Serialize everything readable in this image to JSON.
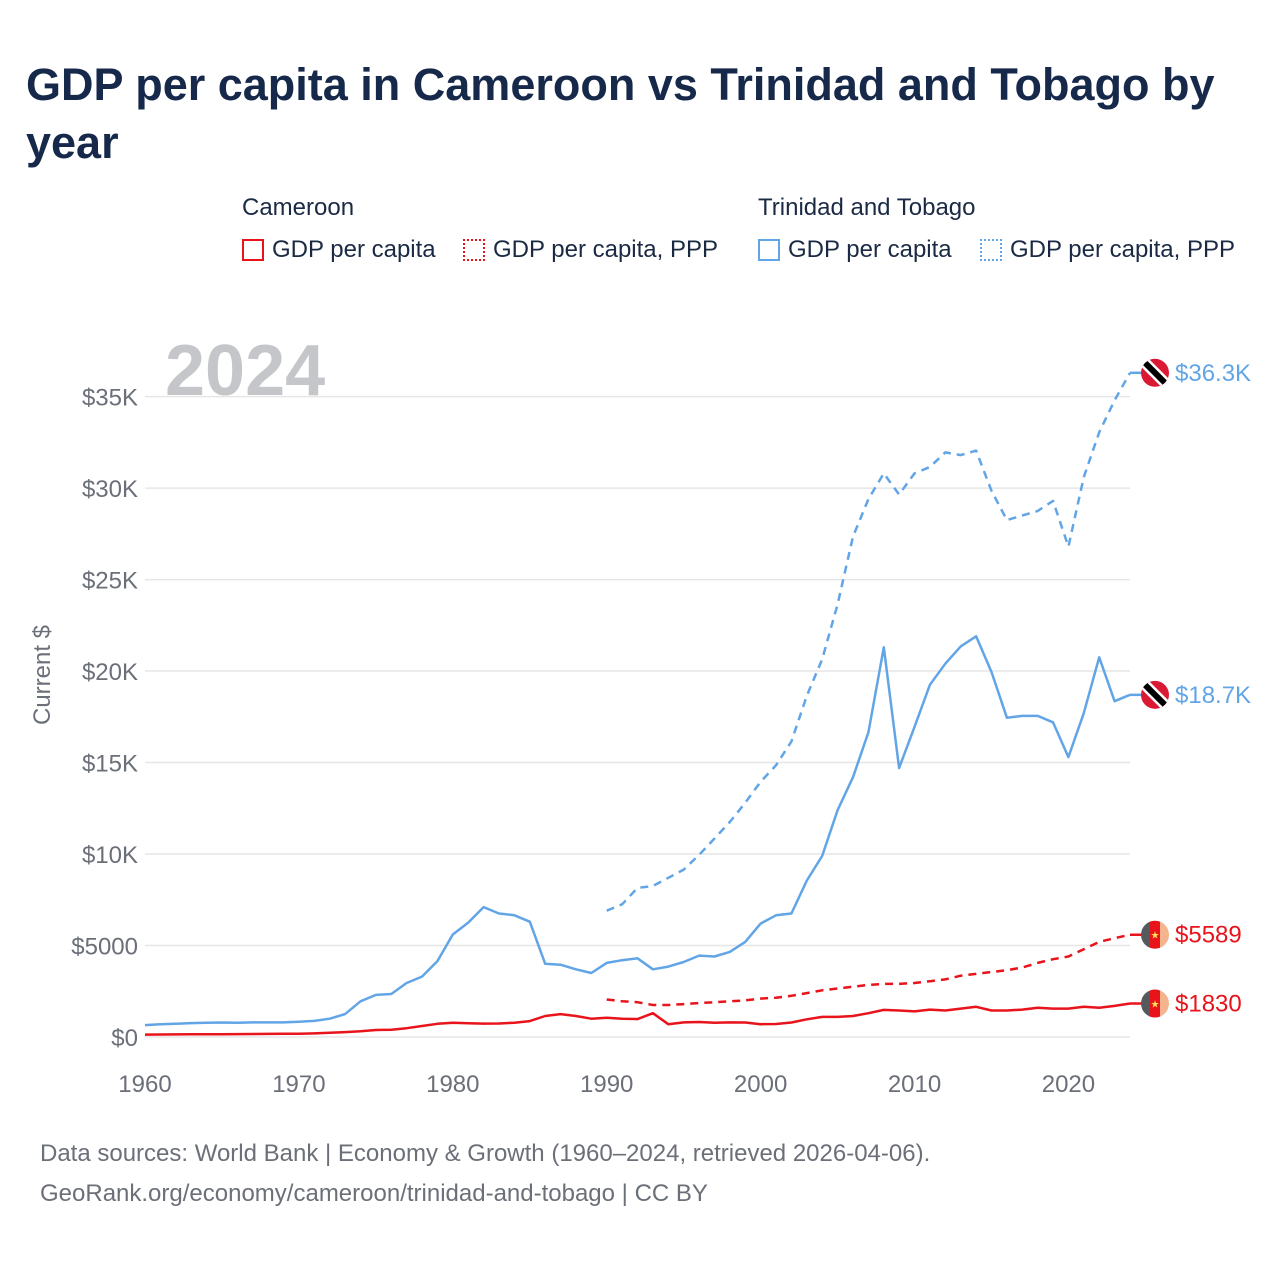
{
  "title": "GDP per capita in Cameroon vs Trinidad and Tobago by year",
  "legend": {
    "cameroon": {
      "group": "Cameroon",
      "solid": "GDP per capita",
      "dashed": "GDP per capita, PPP"
    },
    "tt": {
      "group": "Trinidad and Tobago",
      "solid": "GDP per capita",
      "dashed": "GDP per capita, PPP"
    }
  },
  "footer": {
    "line1": "Data sources: World Bank | Economy & Growth (1960–2024, retrieved 2026-04-06).",
    "line2": "GeoRank.org/economy/cameroon/trinidad-and-tobago | CC BY"
  },
  "chart_data": {
    "type": "line",
    "title": "GDP per capita in Cameroon vs Trinidad and Tobago by year",
    "year_label": "2024",
    "ylabel": "Current $",
    "xlabel": "",
    "xlim": [
      1960,
      2024
    ],
    "ylim": [
      0,
      37000
    ],
    "x_ticks": [
      1960,
      1970,
      1980,
      1990,
      2000,
      2010,
      2020
    ],
    "x_tick_labels": [
      "1960",
      "1970",
      "1980",
      "1990",
      "2000",
      "2010",
      "2020"
    ],
    "y_ticks": [
      0,
      5000,
      10000,
      15000,
      20000,
      25000,
      30000,
      35000
    ],
    "y_tick_labels": [
      "$0",
      "$5000",
      "$10K",
      "$15K",
      "$20K",
      "$25K",
      "$30K",
      "$35K"
    ],
    "colors": {
      "cameroon": "#e8131b",
      "tt": "#62a5e6",
      "grid": "#e6e6e6",
      "axis_text": "#6b6f78",
      "year_watermark": "#c4c6ca"
    },
    "series": [
      {
        "name": "Trinidad and Tobago GDP per capita, PPP",
        "country": "tt",
        "style": "dashed",
        "end_label": "$36.3K",
        "points": [
          [
            1990,
            6900
          ],
          [
            1991,
            7250
          ],
          [
            1992,
            8150
          ],
          [
            1993,
            8250
          ],
          [
            1994,
            8700
          ],
          [
            1995,
            9150
          ],
          [
            1996,
            9950
          ],
          [
            1997,
            10850
          ],
          [
            1998,
            11750
          ],
          [
            1999,
            12800
          ],
          [
            2000,
            13950
          ],
          [
            2001,
            14850
          ],
          [
            2002,
            16150
          ],
          [
            2003,
            18650
          ],
          [
            2004,
            20650
          ],
          [
            2005,
            23650
          ],
          [
            2006,
            27350
          ],
          [
            2007,
            29400
          ],
          [
            2008,
            30800
          ],
          [
            2009,
            29650
          ],
          [
            2010,
            30800
          ],
          [
            2011,
            31150
          ],
          [
            2012,
            31950
          ],
          [
            2013,
            31800
          ],
          [
            2014,
            32050
          ],
          [
            2015,
            29850
          ],
          [
            2016,
            28250
          ],
          [
            2017,
            28500
          ],
          [
            2018,
            28750
          ],
          [
            2019,
            29300
          ],
          [
            2020,
            26800
          ],
          [
            2021,
            30600
          ],
          [
            2022,
            33050
          ],
          [
            2023,
            34800
          ],
          [
            2024,
            36300
          ]
        ]
      },
      {
        "name": "Trinidad and Tobago GDP per capita",
        "country": "tt",
        "style": "solid",
        "end_label": "$18.7K",
        "points": [
          [
            1960,
            650
          ],
          [
            1961,
            700
          ],
          [
            1962,
            720
          ],
          [
            1963,
            760
          ],
          [
            1964,
            780
          ],
          [
            1965,
            790
          ],
          [
            1966,
            780
          ],
          [
            1967,
            800
          ],
          [
            1968,
            800
          ],
          [
            1969,
            800
          ],
          [
            1970,
            830
          ],
          [
            1971,
            880
          ],
          [
            1972,
            1000
          ],
          [
            1973,
            1250
          ],
          [
            1974,
            1950
          ],
          [
            1975,
            2300
          ],
          [
            1976,
            2350
          ],
          [
            1977,
            2950
          ],
          [
            1978,
            3300
          ],
          [
            1979,
            4150
          ],
          [
            1980,
            5600
          ],
          [
            1981,
            6250
          ],
          [
            1982,
            7100
          ],
          [
            1983,
            6750
          ],
          [
            1984,
            6650
          ],
          [
            1985,
            6300
          ],
          [
            1986,
            4000
          ],
          [
            1987,
            3950
          ],
          [
            1988,
            3700
          ],
          [
            1989,
            3500
          ],
          [
            1990,
            4050
          ],
          [
            1991,
            4200
          ],
          [
            1992,
            4300
          ],
          [
            1993,
            3700
          ],
          [
            1994,
            3850
          ],
          [
            1995,
            4100
          ],
          [
            1996,
            4450
          ],
          [
            1997,
            4400
          ],
          [
            1998,
            4650
          ],
          [
            1999,
            5200
          ],
          [
            2000,
            6200
          ],
          [
            2001,
            6650
          ],
          [
            2002,
            6750
          ],
          [
            2003,
            8550
          ],
          [
            2004,
            9900
          ],
          [
            2005,
            12400
          ],
          [
            2006,
            14200
          ],
          [
            2007,
            16650
          ],
          [
            2008,
            21300
          ],
          [
            2009,
            14700
          ],
          [
            2010,
            16950
          ],
          [
            2011,
            19250
          ],
          [
            2012,
            20400
          ],
          [
            2013,
            21350
          ],
          [
            2014,
            21900
          ],
          [
            2015,
            19950
          ],
          [
            2016,
            17450
          ],
          [
            2017,
            17550
          ],
          [
            2018,
            17550
          ],
          [
            2019,
            17200
          ],
          [
            2020,
            15300
          ],
          [
            2021,
            17700
          ],
          [
            2022,
            20750
          ],
          [
            2023,
            18350
          ],
          [
            2024,
            18700
          ]
        ]
      },
      {
        "name": "Cameroon GDP per capita, PPP",
        "country": "cameroon",
        "style": "dashed",
        "end_label": "$5589",
        "points": [
          [
            1990,
            2050
          ],
          [
            1991,
            1950
          ],
          [
            1992,
            1900
          ],
          [
            1993,
            1750
          ],
          [
            1994,
            1750
          ],
          [
            1995,
            1800
          ],
          [
            1996,
            1850
          ],
          [
            1997,
            1900
          ],
          [
            1998,
            1950
          ],
          [
            1999,
            2000
          ],
          [
            2000,
            2100
          ],
          [
            2001,
            2150
          ],
          [
            2002,
            2250
          ],
          [
            2003,
            2400
          ],
          [
            2004,
            2550
          ],
          [
            2005,
            2650
          ],
          [
            2006,
            2750
          ],
          [
            2007,
            2850
          ],
          [
            2008,
            2900
          ],
          [
            2009,
            2900
          ],
          [
            2010,
            2950
          ],
          [
            2011,
            3050
          ],
          [
            2012,
            3150
          ],
          [
            2013,
            3350
          ],
          [
            2014,
            3450
          ],
          [
            2015,
            3550
          ],
          [
            2016,
            3650
          ],
          [
            2017,
            3800
          ],
          [
            2018,
            4050
          ],
          [
            2019,
            4250
          ],
          [
            2020,
            4400
          ],
          [
            2021,
            4800
          ],
          [
            2022,
            5200
          ],
          [
            2023,
            5400
          ],
          [
            2024,
            5589
          ]
        ]
      },
      {
        "name": "Cameroon GDP per capita",
        "country": "cameroon",
        "style": "solid",
        "end_label": "$1830",
        "points": [
          [
            1960,
            130
          ],
          [
            1961,
            135
          ],
          [
            1962,
            140
          ],
          [
            1963,
            145
          ],
          [
            1964,
            150
          ],
          [
            1965,
            155
          ],
          [
            1966,
            160
          ],
          [
            1967,
            165
          ],
          [
            1968,
            170
          ],
          [
            1969,
            175
          ],
          [
            1970,
            180
          ],
          [
            1971,
            195
          ],
          [
            1972,
            230
          ],
          [
            1973,
            270
          ],
          [
            1974,
            310
          ],
          [
            1975,
            380
          ],
          [
            1976,
            400
          ],
          [
            1977,
            480
          ],
          [
            1978,
            600
          ],
          [
            1979,
            720
          ],
          [
            1980,
            780
          ],
          [
            1981,
            750
          ],
          [
            1982,
            730
          ],
          [
            1983,
            740
          ],
          [
            1984,
            780
          ],
          [
            1985,
            870
          ],
          [
            1986,
            1150
          ],
          [
            1987,
            1250
          ],
          [
            1988,
            1150
          ],
          [
            1989,
            1000
          ],
          [
            1990,
            1050
          ],
          [
            1991,
            1000
          ],
          [
            1992,
            980
          ],
          [
            1993,
            1300
          ],
          [
            1994,
            700
          ],
          [
            1995,
            800
          ],
          [
            1996,
            820
          ],
          [
            1997,
            780
          ],
          [
            1998,
            800
          ],
          [
            1999,
            790
          ],
          [
            2000,
            700
          ],
          [
            2001,
            710
          ],
          [
            2002,
            790
          ],
          [
            2003,
            970
          ],
          [
            2004,
            1100
          ],
          [
            2005,
            1100
          ],
          [
            2006,
            1150
          ],
          [
            2007,
            1300
          ],
          [
            2008,
            1480
          ],
          [
            2009,
            1450
          ],
          [
            2010,
            1400
          ],
          [
            2011,
            1500
          ],
          [
            2012,
            1450
          ],
          [
            2013,
            1550
          ],
          [
            2014,
            1650
          ],
          [
            2015,
            1450
          ],
          [
            2016,
            1450
          ],
          [
            2017,
            1500
          ],
          [
            2018,
            1600
          ],
          [
            2019,
            1550
          ],
          [
            2020,
            1550
          ],
          [
            2021,
            1650
          ],
          [
            2022,
            1600
          ],
          [
            2023,
            1700
          ],
          [
            2024,
            1830
          ]
        ]
      }
    ]
  }
}
